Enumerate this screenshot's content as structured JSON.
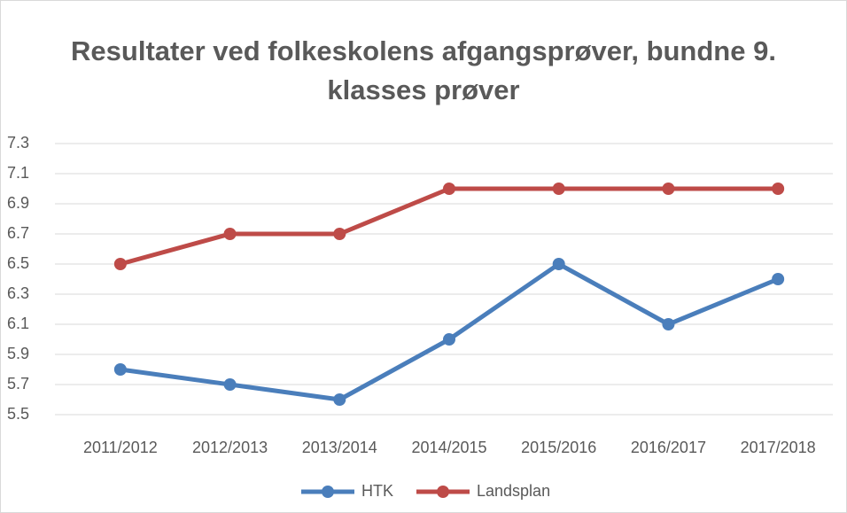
{
  "chart_data": {
    "type": "line",
    "title": "Resultater ved folkeskolens afgangsprøver, bundne 9. klasses prøver",
    "categories": [
      "2011/2012",
      "2012/2013",
      "2013/2014",
      "2014/2015",
      "2015/2016",
      "2016/2017",
      "2017/2018"
    ],
    "series": [
      {
        "name": "HTK",
        "color": "#4a7ebb",
        "values": [
          5.8,
          5.7,
          5.6,
          6.0,
          6.5,
          6.1,
          6.4
        ]
      },
      {
        "name": "Landsplan",
        "color": "#be4b48",
        "values": [
          6.5,
          6.7,
          6.7,
          7.0,
          7.0,
          7.0,
          7.0
        ]
      }
    ],
    "ylim": [
      5.5,
      7.3
    ],
    "yticks": [
      5.5,
      5.7,
      5.9,
      6.1,
      6.3,
      6.5,
      6.7,
      6.9,
      7.1,
      7.3
    ],
    "grid": true,
    "legend": "bottom"
  }
}
